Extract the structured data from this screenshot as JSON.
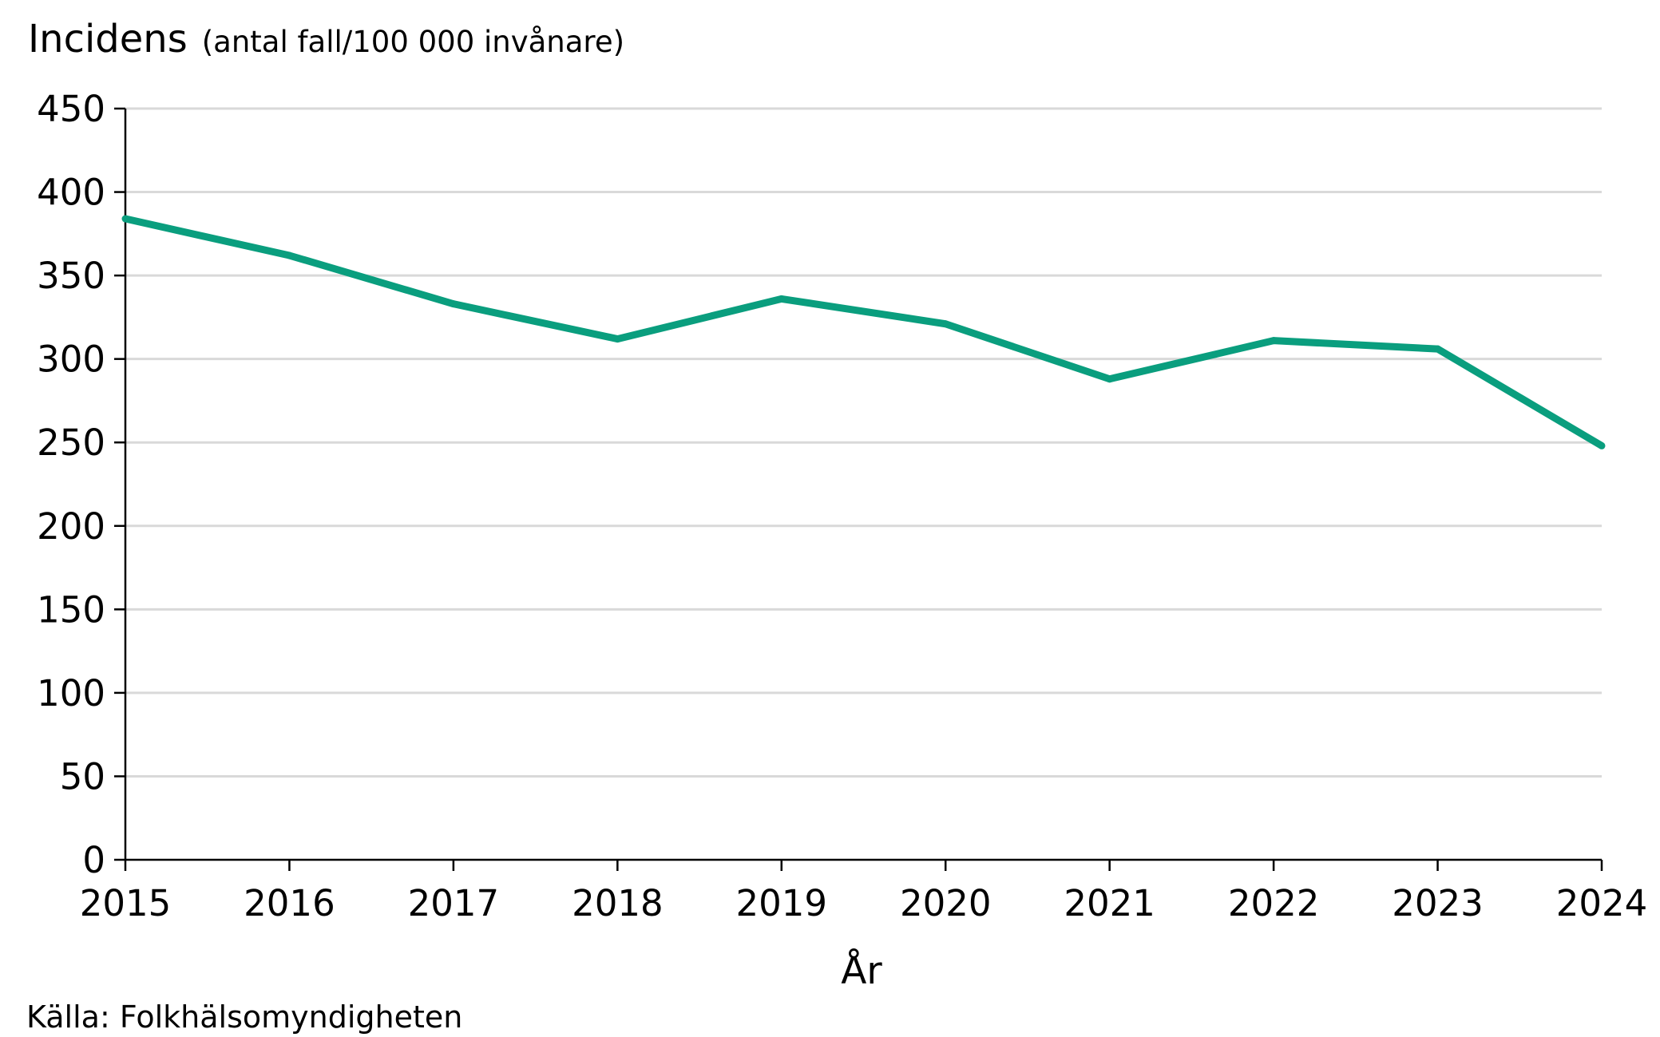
{
  "chart_data": {
    "type": "line",
    "title": "Incidens",
    "title_unit": "(antal fall/100 000 invånare)",
    "xlabel": "År",
    "ylabel": "",
    "ylim": [
      0,
      450
    ],
    "ytick_step": 50,
    "grid": true,
    "source": "Källa: Folkhälsomyndigheten",
    "x": [
      "2015",
      "2016",
      "2017",
      "2018",
      "2019",
      "2020",
      "2021",
      "2022",
      "2023",
      "2024"
    ],
    "series": [
      {
        "name": "Incidens",
        "color": "#0a9e7e",
        "values": [
          384,
          362,
          333,
          312,
          336,
          321,
          288,
          311,
          306,
          248
        ]
      }
    ]
  }
}
